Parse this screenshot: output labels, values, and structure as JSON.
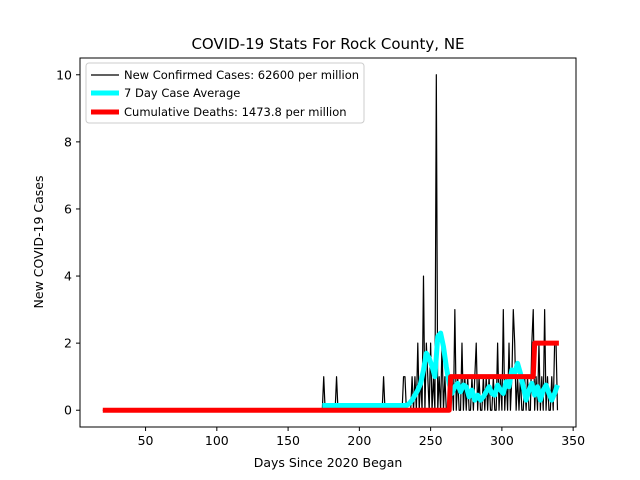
{
  "chart_data": {
    "type": "line",
    "title": "COVID-19 Stats For Rock County, NE",
    "xlabel": "Days Since 2020 Began",
    "ylabel": "New COVID-19 Cases",
    "xlim": [
      4,
      352
    ],
    "ylim": [
      -0.5,
      10.5
    ],
    "xticks": [
      50,
      100,
      150,
      200,
      250,
      300,
      350
    ],
    "yticks": [
      0,
      2,
      4,
      6,
      8,
      10
    ],
    "grid": false,
    "legend_position": "top-left",
    "series": [
      {
        "name": "New Confirmed Cases: 62600 per million",
        "color": "#000000",
        "x": [
          20,
          172,
          173,
          174,
          175,
          176,
          182,
          183,
          184,
          185,
          186,
          215,
          216,
          217,
          218,
          219,
          230,
          231,
          232,
          233,
          234,
          236,
          237,
          238,
          239,
          240,
          241,
          242,
          243,
          244,
          245,
          246,
          247,
          248,
          249,
          250,
          251,
          252,
          253,
          254,
          255,
          256,
          257,
          258,
          259,
          260,
          261,
          262,
          263,
          264,
          265,
          266,
          267,
          268,
          269,
          270,
          271,
          272,
          273,
          274,
          275,
          276,
          277,
          278,
          279,
          280,
          281,
          282,
          283,
          284,
          285,
          286,
          287,
          288,
          289,
          290,
          291,
          292,
          293,
          294,
          295,
          296,
          297,
          298,
          299,
          300,
          301,
          302,
          303,
          304,
          305,
          306,
          307,
          308,
          309,
          310,
          311,
          312,
          313,
          314,
          315,
          316,
          317,
          318,
          319,
          320,
          321,
          322,
          323,
          324,
          325,
          326,
          327,
          328,
          329,
          330,
          331,
          332,
          333,
          334,
          335,
          336,
          337,
          338,
          339
        ],
        "y": [
          0,
          0,
          0,
          0,
          1,
          0,
          0,
          0,
          1,
          0,
          0,
          0,
          0,
          1,
          0,
          0,
          0,
          1,
          1,
          0,
          0,
          0,
          1,
          0,
          1,
          0,
          2,
          0,
          1,
          0,
          4,
          0,
          2,
          1,
          0,
          2,
          0,
          1,
          0,
          10,
          0,
          1,
          0,
          2,
          0,
          1,
          0,
          0,
          1,
          0,
          1,
          0,
          3,
          0,
          1,
          0,
          0,
          2,
          0,
          1,
          0,
          1,
          0,
          0,
          1,
          0,
          1,
          2,
          0,
          1,
          0,
          0,
          1,
          0,
          1,
          0,
          1,
          0,
          0,
          1,
          0,
          0,
          2,
          0,
          1,
          0,
          3,
          0,
          1,
          0,
          2,
          0,
          1,
          3,
          2,
          0,
          1,
          0,
          1,
          0,
          0,
          1,
          0,
          1,
          0,
          0,
          2,
          3,
          0,
          1,
          0,
          2,
          0,
          1,
          0,
          3,
          0,
          1,
          0,
          0,
          1,
          0,
          2,
          2,
          0
        ]
      },
      {
        "name": "7 Day Case Average",
        "color": "#00ffff",
        "x": [
          174,
          176,
          178,
          180,
          182,
          184,
          186,
          188,
          190,
          216,
          218,
          220,
          222,
          233,
          235,
          237,
          239,
          241,
          243,
          245,
          247,
          249,
          251,
          253,
          255,
          257,
          259,
          261,
          263,
          265,
          267,
          269,
          271,
          273,
          275,
          277,
          279,
          281,
          283,
          285,
          287,
          289,
          291,
          293,
          295,
          297,
          299,
          301,
          303,
          305,
          307,
          309,
          311,
          313,
          315,
          317,
          319,
          321,
          323,
          325,
          327,
          329,
          331,
          333,
          335,
          337,
          339
        ],
        "y": [
          0.14,
          0.14,
          0.14,
          0.14,
          0.14,
          0.14,
          0.14,
          0.14,
          0.14,
          0.14,
          0.14,
          0.14,
          0.14,
          0.14,
          0.2,
          0.3,
          0.45,
          0.6,
          0.8,
          1.2,
          1.7,
          1.55,
          1.3,
          1.0,
          2.2,
          2.3,
          1.9,
          1.3,
          0.8,
          0.5,
          0.7,
          0.8,
          0.55,
          0.75,
          0.7,
          0.4,
          0.6,
          0.3,
          0.45,
          0.3,
          0.4,
          0.55,
          0.7,
          0.5,
          0.45,
          0.75,
          0.6,
          0.5,
          0.85,
          0.7,
          1.2,
          1.1,
          1.4,
          1.1,
          0.7,
          0.3,
          0.6,
          0.8,
          0.45,
          0.7,
          0.3,
          0.6,
          0.75,
          0.5,
          0.3,
          0.5,
          0.75
        ]
      },
      {
        "name": "Cumulative Deaths: 1473.8 per million",
        "color": "#ff0000",
        "x": [
          20,
          263,
          264,
          322,
          323,
          340
        ],
        "y": [
          0,
          0,
          1,
          1,
          2,
          2
        ]
      }
    ]
  }
}
